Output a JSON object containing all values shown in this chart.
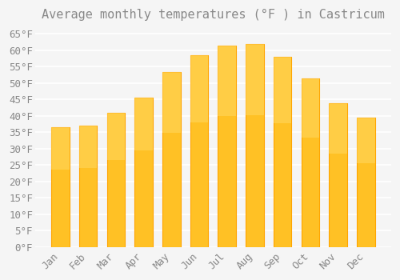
{
  "title": "Average monthly temperatures (°F ) in Castricum",
  "months": [
    "Jan",
    "Feb",
    "Mar",
    "Apr",
    "May",
    "Jun",
    "Jul",
    "Aug",
    "Sep",
    "Oct",
    "Nov",
    "Dec"
  ],
  "values": [
    36.5,
    37.0,
    41.0,
    45.5,
    53.5,
    58.5,
    61.5,
    62.0,
    58.0,
    51.5,
    44.0,
    39.5
  ],
  "bar_color_face": "#FFC125",
  "bar_color_edge": "#FFA500",
  "ylim": [
    0,
    67
  ],
  "ytick_step": 5,
  "background_color": "#F5F5F5",
  "grid_color": "#FFFFFF",
  "title_fontsize": 11,
  "tick_fontsize": 9,
  "font_color": "#888888"
}
